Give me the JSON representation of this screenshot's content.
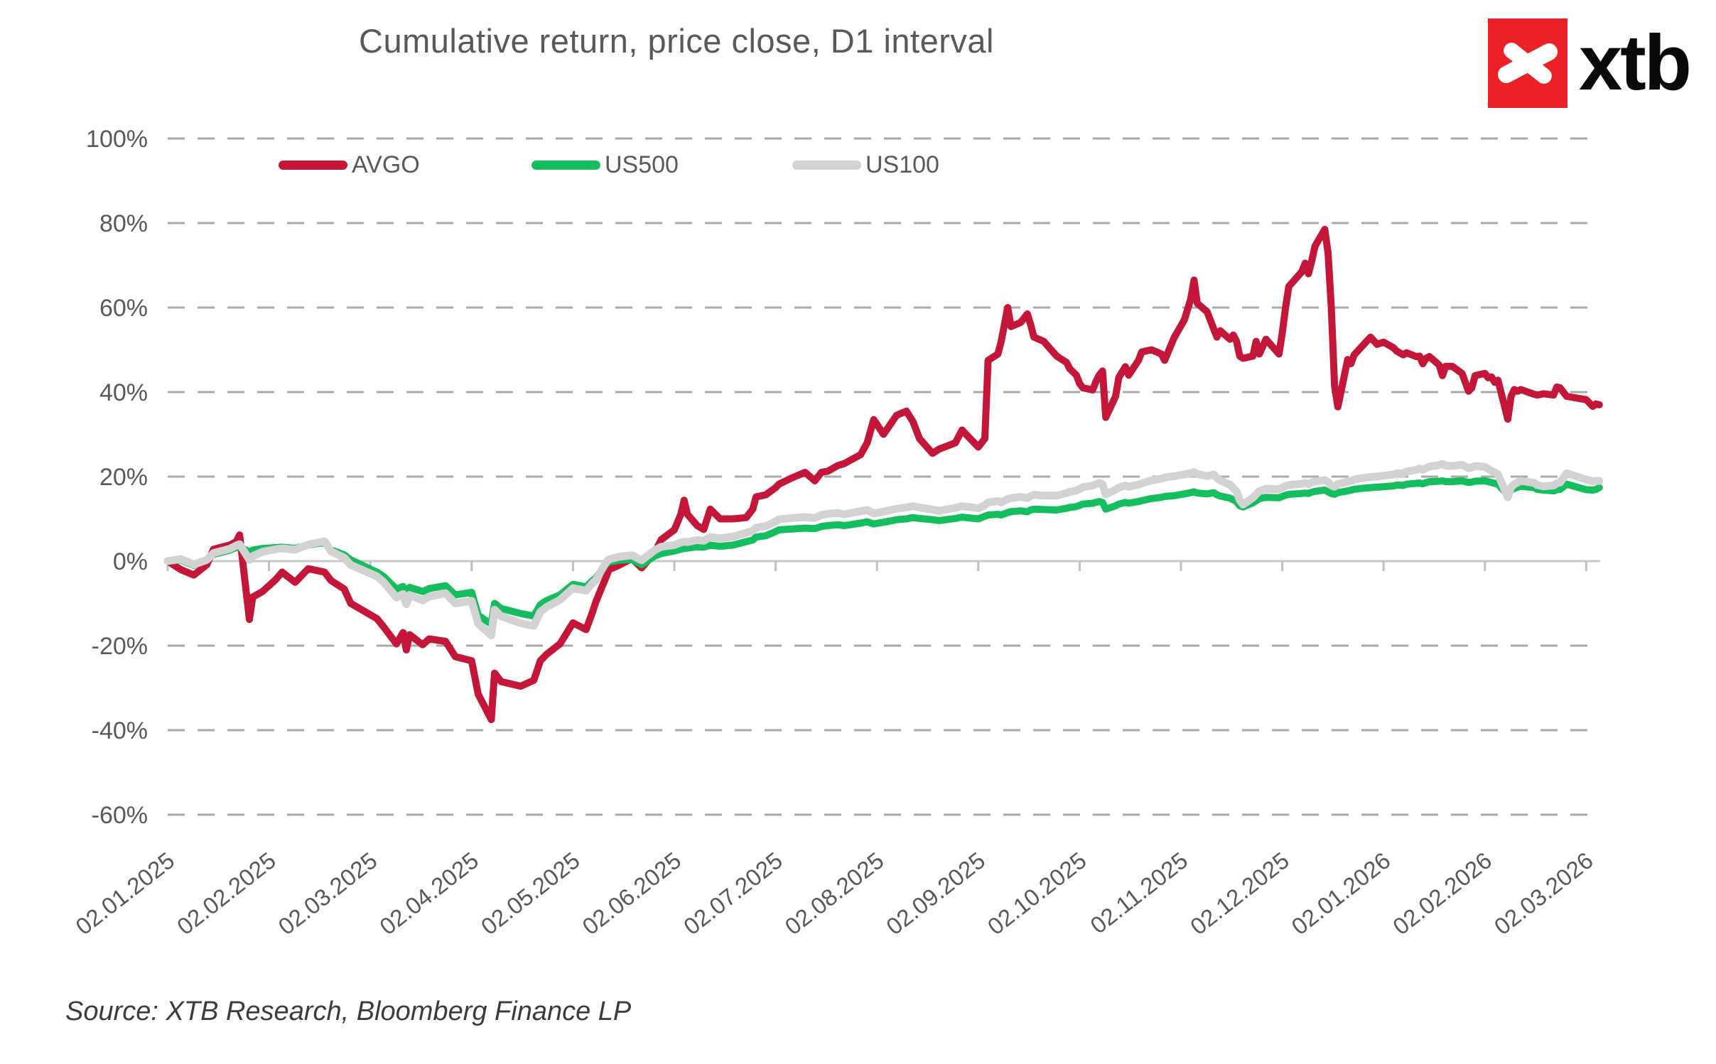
{
  "logo": {
    "text": "xtb",
    "square_color": "#EC2127"
  },
  "source_note": "Source: XTB Research, Bloomberg Finance LP",
  "chart_data": {
    "type": "line",
    "title": "Cumulative return, price close, D1 interval",
    "xlabel": "",
    "ylabel": "",
    "ylim": [
      -60,
      100
    ],
    "grid": "dashed horizontal",
    "legend_position": "top-left inside",
    "colors": {
      "grid": "#A9A9A9",
      "zero_line": "#C8C8C8",
      "tick": "#BFBFBF",
      "text": "#595959"
    },
    "y_ticks": [
      {
        "label": "100%",
        "value": 100
      },
      {
        "label": "80%",
        "value": 80
      },
      {
        "label": "60%",
        "value": 60
      },
      {
        "label": "40%",
        "value": 40
      },
      {
        "label": "20%",
        "value": 20
      },
      {
        "label": "0%",
        "value": 0
      },
      {
        "label": "-20%",
        "value": -20
      },
      {
        "label": "-40%",
        "value": -40
      },
      {
        "label": "-60%",
        "value": -60
      }
    ],
    "x_ticks": [
      "02.01.2025",
      "02.02.2025",
      "02.03.2025",
      "02.04.2025",
      "02.05.2025",
      "02.06.2025",
      "02.07.2025",
      "02.08.2025",
      "02.09.2025",
      "02.10.2025",
      "02.11.2025",
      "02.12.2025",
      "02.01.2026",
      "02.02.2026",
      "02.03.2026"
    ],
    "series": [
      {
        "name": "AVGO",
        "color": "#C31638",
        "width": 10
      },
      {
        "name": "US500",
        "color": "#14BE5D",
        "width": 10
      },
      {
        "name": "US100",
        "color": "#D2D2D2",
        "width": 11
      }
    ],
    "rows_format": [
      "date",
      "AVGO_pct",
      "US500_pct",
      "US100_pct"
    ],
    "rows": [
      [
        "2025-01-02",
        0,
        0,
        0
      ],
      [
        "2025-01-06",
        -2,
        0.3,
        0.5
      ],
      [
        "2025-01-10",
        -3.3,
        -1,
        -0.8
      ],
      [
        "2025-01-14",
        -0.8,
        0.4,
        0.3
      ],
      [
        "2025-01-16",
        2.8,
        1.6,
        1.9
      ],
      [
        "2025-01-21",
        3.8,
        2.6,
        2.9
      ],
      [
        "2025-01-23",
        4.6,
        3.2,
        3.7
      ],
      [
        "2025-01-24",
        6.2,
        3.4,
        4
      ],
      [
        "2025-01-27",
        -13.8,
        2.2,
        0.3
      ],
      [
        "2025-01-28",
        -8.5,
        2.6,
        1.2
      ],
      [
        "2025-01-31",
        -7.2,
        3,
        2.2
      ],
      [
        "2025-02-04",
        -4.4,
        3.2,
        2.8
      ],
      [
        "2025-02-06",
        -2.6,
        3.3,
        3
      ],
      [
        "2025-02-10",
        -5,
        3,
        2.7
      ],
      [
        "2025-02-14",
        -1.8,
        3.8,
        3.9
      ],
      [
        "2025-02-19",
        -2.6,
        4.4,
        4.7
      ],
      [
        "2025-02-21",
        -4.6,
        2.6,
        2.3
      ],
      [
        "2025-02-25",
        -6.6,
        1.5,
        0.8
      ],
      [
        "2025-02-27",
        -10,
        0.3,
        -0.9
      ],
      [
        "2025-03-04",
        -13.6,
        -2.6,
        -3.6
      ],
      [
        "2025-03-06",
        -15.5,
        -3.6,
        -4.9
      ],
      [
        "2025-03-10",
        -19.6,
        -6.6,
        -8.6
      ],
      [
        "2025-03-12",
        -16.9,
        -6,
        -7.8
      ],
      [
        "2025-03-13",
        -21,
        -8,
        -10.2
      ],
      [
        "2025-03-14",
        -17.4,
        -6.2,
        -8
      ],
      [
        "2025-03-18",
        -19.8,
        -7.2,
        -9.3
      ],
      [
        "2025-03-20",
        -18.4,
        -6.5,
        -8.4
      ],
      [
        "2025-03-25",
        -19,
        -5.8,
        -7.6
      ],
      [
        "2025-03-28",
        -22.6,
        -8,
        -10
      ],
      [
        "2025-04-02",
        -23.6,
        -7.4,
        -9.4
      ],
      [
        "2025-04-04",
        -31.5,
        -12.8,
        -14.8
      ],
      [
        "2025-04-08",
        -37.5,
        -14.9,
        -17.6
      ],
      [
        "2025-04-09",
        -26.5,
        -10,
        -11.5
      ],
      [
        "2025-04-11",
        -28.5,
        -11.2,
        -13
      ],
      [
        "2025-04-17",
        -29.6,
        -12.4,
        -14.7
      ],
      [
        "2025-04-21",
        -28.2,
        -13,
        -15.3
      ],
      [
        "2025-04-23",
        -23.6,
        -10.3,
        -12
      ],
      [
        "2025-04-25",
        -22,
        -9.3,
        -10.8
      ],
      [
        "2025-04-29",
        -19.6,
        -8,
        -9.2
      ],
      [
        "2025-05-02",
        -14.6,
        -5.5,
        -6.4
      ],
      [
        "2025-05-06",
        -16.2,
        -6.1,
        -7
      ],
      [
        "2025-05-08",
        -12,
        -4.6,
        -5.2
      ],
      [
        "2025-05-09",
        -9.6,
        -4,
        -4.5
      ],
      [
        "2025-05-12",
        -4,
        -0.8,
        -0.4
      ],
      [
        "2025-05-13",
        -2,
        -0.2,
        0.4
      ],
      [
        "2025-05-16",
        -1,
        0.2,
        1
      ],
      [
        "2025-05-20",
        0.6,
        0.4,
        1.4
      ],
      [
        "2025-05-23",
        -1.6,
        -0.8,
        0.2
      ],
      [
        "2025-05-27",
        2,
        1.2,
        2.6
      ],
      [
        "2025-05-29",
        5.1,
        1.8,
        3.4
      ],
      [
        "2025-06-02",
        7.4,
        2.4,
        3.8
      ],
      [
        "2025-06-04",
        11.1,
        2.8,
        4.4
      ],
      [
        "2025-06-05",
        14.4,
        3,
        4.6
      ],
      [
        "2025-06-06",
        11.1,
        3.1,
        4.5
      ],
      [
        "2025-06-09",
        8.4,
        3.4,
        5
      ],
      [
        "2025-06-11",
        7.5,
        3.3,
        4.8
      ],
      [
        "2025-06-13",
        12.3,
        3.8,
        5.7
      ],
      [
        "2025-06-16",
        10,
        3.5,
        5.4
      ],
      [
        "2025-06-20",
        10,
        3.8,
        5.8
      ],
      [
        "2025-06-24",
        10.3,
        4.6,
        6.7
      ],
      [
        "2025-06-26",
        12.3,
        5,
        7.2
      ],
      [
        "2025-06-27",
        15.2,
        5.7,
        7.9
      ],
      [
        "2025-06-30",
        15.7,
        6,
        8.3
      ],
      [
        "2025-07-02",
        17.4,
        7,
        9.4
      ],
      [
        "2025-07-03",
        18.2,
        7.4,
        9.9
      ],
      [
        "2025-07-07",
        19.7,
        7.6,
        10.2
      ],
      [
        "2025-07-11",
        21,
        7.8,
        10.4
      ],
      [
        "2025-07-14",
        19,
        7.7,
        10.2
      ],
      [
        "2025-07-16",
        21,
        8.2,
        10.9
      ],
      [
        "2025-07-18",
        21.3,
        8.4,
        11.2
      ],
      [
        "2025-07-21",
        22.6,
        8.6,
        11.4
      ],
      [
        "2025-07-23",
        23.1,
        8.4,
        11.1
      ],
      [
        "2025-07-28",
        25.2,
        9,
        11.8
      ],
      [
        "2025-07-30",
        28,
        9.3,
        12.1
      ],
      [
        "2025-08-01",
        33.5,
        8.8,
        11.3
      ],
      [
        "2025-08-04",
        30,
        9.2,
        11.7
      ],
      [
        "2025-08-08",
        34.5,
        9.8,
        12.4
      ],
      [
        "2025-08-11",
        35.5,
        10,
        12.7
      ],
      [
        "2025-08-13",
        33,
        10.3,
        13
      ],
      [
        "2025-08-15",
        29,
        10.1,
        12.7
      ],
      [
        "2025-08-19",
        25.5,
        9.8,
        12.2
      ],
      [
        "2025-08-21",
        26.5,
        9.6,
        11.9
      ],
      [
        "2025-08-26",
        28,
        10.1,
        12.6
      ],
      [
        "2025-08-28",
        31,
        10.4,
        13
      ],
      [
        "2025-09-02",
        27,
        10,
        12.5
      ],
      [
        "2025-09-04",
        29,
        10.6,
        13.2
      ],
      [
        "2025-09-05",
        47.5,
        10.9,
        13.9
      ],
      [
        "2025-09-08",
        49,
        11.1,
        14.2
      ],
      [
        "2025-09-09",
        52,
        10.9,
        13.9
      ],
      [
        "2025-09-11",
        60,
        11.5,
        14.7
      ],
      [
        "2025-09-12",
        55.5,
        11.7,
        14.9
      ],
      [
        "2025-09-15",
        56.5,
        11.9,
        15.2
      ],
      [
        "2025-09-17",
        58.5,
        11.7,
        14.9
      ],
      [
        "2025-09-18",
        56,
        12.1,
        15.4
      ],
      [
        "2025-09-19",
        53,
        12.3,
        15.7
      ],
      [
        "2025-09-22",
        52,
        12.2,
        15.5
      ],
      [
        "2025-09-26",
        48.5,
        12.1,
        15.5
      ],
      [
        "2025-09-29",
        47,
        12.5,
        16.1
      ],
      [
        "2025-09-30",
        45.5,
        12.7,
        16.4
      ],
      [
        "2025-10-01",
        44,
        12.9,
        16.7
      ],
      [
        "2025-10-02",
        42,
        13.2,
        17.1
      ],
      [
        "2025-10-03",
        41,
        13.5,
        17.5
      ],
      [
        "2025-10-06",
        40.5,
        13.7,
        17.9
      ],
      [
        "2025-10-07",
        42.5,
        13.9,
        18.2
      ],
      [
        "2025-10-08",
        44,
        14.1,
        18.5
      ],
      [
        "2025-10-09",
        45,
        13.9,
        18.2
      ],
      [
        "2025-10-10",
        34,
        12.3,
        15.8
      ],
      [
        "2025-10-13",
        39,
        13.1,
        16.9
      ],
      [
        "2025-10-14",
        43.5,
        13.5,
        17.4
      ],
      [
        "2025-10-16",
        46,
        13.9,
        17.9
      ],
      [
        "2025-10-17",
        44,
        13.7,
        17.6
      ],
      [
        "2025-10-20",
        47.5,
        14.1,
        18.1
      ],
      [
        "2025-10-21",
        49.5,
        14.3,
        18.4
      ],
      [
        "2025-10-24",
        50,
        14.8,
        19.1
      ],
      [
        "2025-10-27",
        49,
        15.1,
        19.5
      ],
      [
        "2025-10-28",
        47.5,
        15.3,
        19.8
      ],
      [
        "2025-10-31",
        53,
        15.5,
        20.1
      ],
      [
        "2025-11-03",
        57,
        15.9,
        20.5
      ],
      [
        "2025-11-05",
        62,
        16.2,
        20.8
      ],
      [
        "2025-11-06",
        66.5,
        16.4,
        21.1
      ],
      [
        "2025-11-07",
        61,
        16.1,
        20.6
      ],
      [
        "2025-11-10",
        59,
        15.9,
        20.1
      ],
      [
        "2025-11-12",
        55,
        16.2,
        20.5
      ],
      [
        "2025-11-13",
        53,
        15.7,
        19.7
      ],
      [
        "2025-11-14",
        54.5,
        15.4,
        19.1
      ],
      [
        "2025-11-17",
        52.5,
        14.9,
        18.1
      ],
      [
        "2025-11-18",
        53.5,
        14.5,
        17.3
      ],
      [
        "2025-11-19",
        52,
        14.1,
        16.5
      ],
      [
        "2025-11-20",
        48.5,
        13.1,
        14.4
      ],
      [
        "2025-11-21",
        48,
        12.8,
        13.4
      ],
      [
        "2025-11-24",
        48.5,
        13.8,
        15
      ],
      [
        "2025-11-25",
        52,
        14.3,
        15.8
      ],
      [
        "2025-11-26",
        49,
        14.8,
        16.6
      ],
      [
        "2025-11-28",
        52.5,
        15.1,
        17.1
      ],
      [
        "2025-12-01",
        49,
        15,
        17
      ],
      [
        "2025-12-02",
        54,
        15.3,
        17.4
      ],
      [
        "2025-12-03",
        60,
        15.6,
        17.8
      ],
      [
        "2025-12-04",
        65,
        15.8,
        18
      ],
      [
        "2025-12-08",
        68.5,
        16,
        18.3
      ],
      [
        "2025-12-09",
        70.5,
        16.1,
        18.5
      ],
      [
        "2025-12-10",
        68,
        16,
        18.2
      ],
      [
        "2025-12-11",
        71,
        16.3,
        18.6
      ],
      [
        "2025-12-12",
        74.5,
        16.5,
        18.8
      ],
      [
        "2025-12-15",
        78.5,
        16.8,
        19.2
      ],
      [
        "2025-12-16",
        73,
        16.4,
        18.7
      ],
      [
        "2025-12-17",
        60,
        16,
        17.9
      ],
      [
        "2025-12-18",
        41.5,
        15.8,
        17.6
      ],
      [
        "2025-12-19",
        36.5,
        16.2,
        18.2
      ],
      [
        "2025-12-22",
        47.7,
        16.6,
        18.8
      ],
      [
        "2025-12-23",
        46.7,
        16.8,
        19
      ],
      [
        "2025-12-24",
        48.8,
        17,
        19.3
      ],
      [
        "2025-12-26",
        50.5,
        17.2,
        19.6
      ],
      [
        "2025-12-29",
        53,
        17.4,
        19.9
      ],
      [
        "2025-12-31",
        51.3,
        17.5,
        20
      ],
      [
        "2026-01-02",
        51.8,
        17.6,
        20.2
      ],
      [
        "2026-01-05",
        50.5,
        17.8,
        20.5
      ],
      [
        "2026-01-06",
        49.7,
        18,
        20.8
      ],
      [
        "2026-01-08",
        48.8,
        17.9,
        20.7
      ],
      [
        "2026-01-09",
        49.3,
        18.2,
        21.2
      ],
      [
        "2026-01-12",
        48.4,
        18.4,
        21.6
      ],
      [
        "2026-01-13",
        48.5,
        18.5,
        21.9
      ],
      [
        "2026-01-14",
        46.7,
        18.3,
        21.6
      ],
      [
        "2026-01-15",
        48,
        18.6,
        22
      ],
      [
        "2026-01-16",
        48.4,
        18.8,
        22.4
      ],
      [
        "2026-01-19",
        46.4,
        18.9,
        22.7
      ],
      [
        "2026-01-20",
        43.9,
        19,
        23
      ],
      [
        "2026-01-21",
        46.1,
        18.8,
        22.6
      ],
      [
        "2026-01-23",
        46.1,
        18.8,
        22.5
      ],
      [
        "2026-01-26",
        44.4,
        19,
        22.8
      ],
      [
        "2026-01-27",
        42.3,
        18.8,
        22.4
      ],
      [
        "2026-01-28",
        40.2,
        18.6,
        22
      ],
      [
        "2026-01-29",
        41,
        18.7,
        22.2
      ],
      [
        "2026-01-30",
        43.9,
        18.9,
        22.5
      ],
      [
        "2026-02-02",
        44.4,
        19,
        22.3
      ],
      [
        "2026-02-03",
        43.4,
        18.8,
        21.8
      ],
      [
        "2026-02-04",
        43.6,
        18.6,
        21.4
      ],
      [
        "2026-02-05",
        42.3,
        18.4,
        21
      ],
      [
        "2026-02-06",
        42.8,
        18.2,
        20.5
      ],
      [
        "2026-02-09",
        33.6,
        15.6,
        15.1
      ],
      [
        "2026-02-10",
        39,
        16.8,
        17.5
      ],
      [
        "2026-02-11",
        40.6,
        17.2,
        18.2
      ],
      [
        "2026-02-12",
        40.2,
        17.5,
        18.6
      ],
      [
        "2026-02-13",
        40.6,
        17.7,
        19
      ],
      [
        "2026-02-17",
        39.5,
        17.4,
        18.5
      ],
      [
        "2026-02-18",
        39.3,
        17,
        18
      ],
      [
        "2026-02-20",
        39.6,
        16.8,
        17.7
      ],
      [
        "2026-02-23",
        39.3,
        16.6,
        17.9
      ],
      [
        "2026-02-24",
        41.2,
        16.9,
        18.4
      ],
      [
        "2026-02-25",
        41,
        17,
        18.6
      ],
      [
        "2026-02-27",
        39,
        18.2,
        20.8
      ],
      [
        "2026-03-02",
        38.2,
        16.9,
        19.3
      ],
      [
        "2026-03-04",
        36.6,
        16.8,
        18.9
      ],
      [
        "2026-03-05",
        37.2,
        17,
        19
      ],
      [
        "2026-03-06",
        37,
        17.4,
        19
      ]
    ]
  }
}
